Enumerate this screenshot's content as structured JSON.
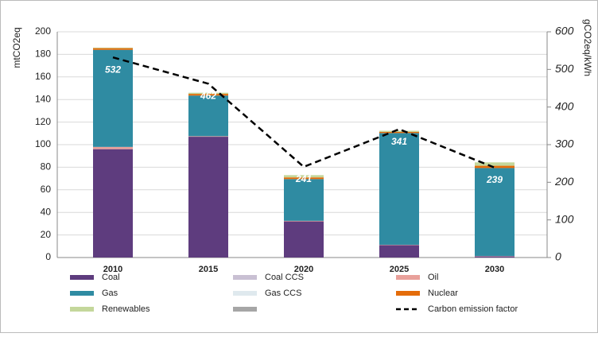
{
  "chart_data": {
    "type": "stacked_bar_line",
    "categories": [
      "2010",
      "2015",
      "2020",
      "2025",
      "2030"
    ],
    "ylabel": "mtCO2eq",
    "y2label": "gCO2eq/kWh",
    "ylim": [
      0,
      200
    ],
    "yticks": [
      0,
      20,
      40,
      60,
      80,
      100,
      120,
      140,
      160,
      180,
      200
    ],
    "y2lim": [
      0,
      600
    ],
    "y2ticks": [
      0,
      100,
      200,
      300,
      400,
      500,
      600
    ],
    "grid": true,
    "legend": "bottom",
    "series": [
      {
        "name": "Coal",
        "color": "#5e3c7e",
        "values": [
          96,
          107,
          32,
          11,
          1
        ]
      },
      {
        "name": "Coal CCS",
        "color": "#c9c0d3",
        "values": [
          0,
          0,
          0,
          0,
          0
        ]
      },
      {
        "name": "Oil",
        "color": "#e8a09a",
        "values": [
          2,
          0.5,
          0.5,
          0.3,
          0.3
        ]
      },
      {
        "name": "Gas",
        "color": "#2f8ba2",
        "values": [
          86,
          36,
          37,
          99,
          78
        ]
      },
      {
        "name": "Gas CCS",
        "color": "#dfe9ee",
        "values": [
          0,
          0,
          0,
          0,
          0
        ]
      },
      {
        "name": "Nuclear",
        "color": "#e46c0a",
        "values": [
          1.5,
          1.5,
          1.5,
          1,
          2
        ]
      },
      {
        "name": "Renewables",
        "color": "#c4d79b",
        "values": [
          0.5,
          1,
          2,
          1,
          3
        ]
      },
      {
        "name": null,
        "color": "#a6a6a6",
        "values": [
          0,
          0,
          0,
          0,
          0
        ]
      },
      {
        "name": "Carbon emission factor",
        "color": "#000000",
        "axis": "y2",
        "line": true,
        "values": [
          532,
          462,
          241,
          341,
          239
        ]
      }
    ]
  }
}
